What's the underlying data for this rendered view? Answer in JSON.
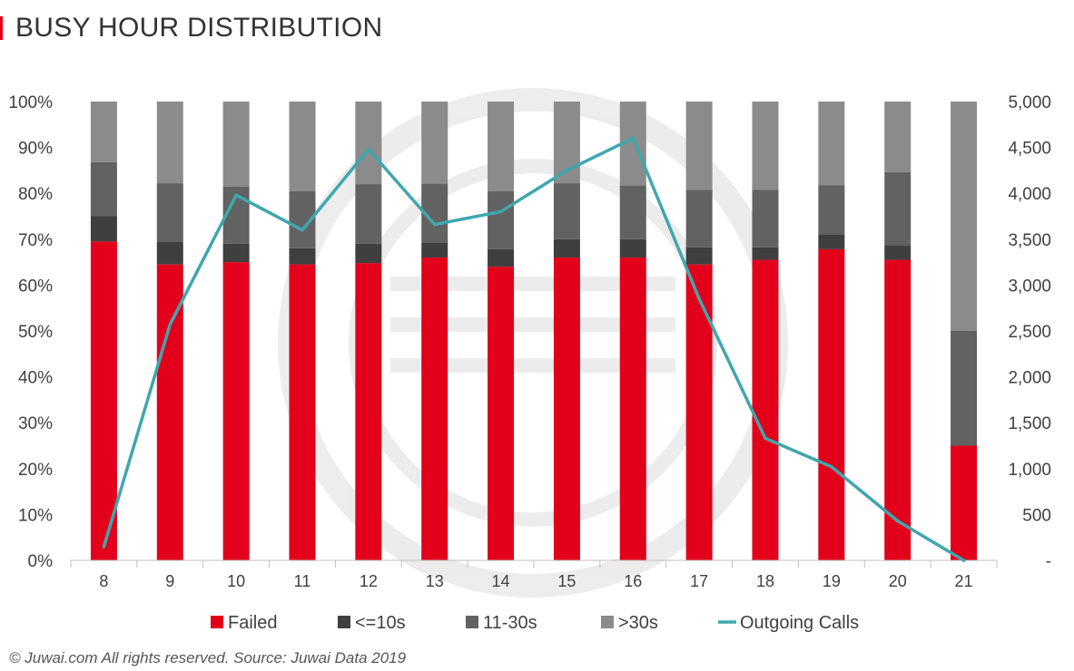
{
  "header": {
    "title": "BUSY HOUR DISTRIBUTION",
    "accent_color": "#e2001a"
  },
  "footer": {
    "text": "© Juwai.com All rights reserved. Source: Juwai Data 2019"
  },
  "chart_data": {
    "type": "bar",
    "subtype": "stacked-100-with-line",
    "categories": [
      "8",
      "9",
      "10",
      "11",
      "12",
      "13",
      "14",
      "15",
      "16",
      "17",
      "18",
      "19",
      "20",
      "21"
    ],
    "series": [
      {
        "name": "Failed",
        "color": "#e2001a",
        "values": [
          69.5,
          64.5,
          65,
          64.5,
          64.8,
          66,
          64,
          66,
          66,
          64.5,
          65.5,
          67.8,
          65.5,
          25
        ]
      },
      {
        "name": "<=10s",
        "color": "#3f3f3f",
        "values": [
          5.5,
          5,
          4,
          3.5,
          4.2,
          3.3,
          3.8,
          4,
          4,
          3.7,
          2.7,
          3.3,
          3.2,
          0
        ]
      },
      {
        "name": "11-30s",
        "color": "#626262",
        "values": [
          11.8,
          12.7,
          12.5,
          12.5,
          13,
          12.8,
          12.7,
          12.2,
          11.7,
          12.6,
          12.6,
          10.7,
          15.9,
          25
        ]
      },
      {
        "name": ">30s",
        "color": "#8b8b8b",
        "values": [
          13.2,
          17.8,
          18.5,
          19.5,
          18,
          17.9,
          19.5,
          17.8,
          18.3,
          19.2,
          19.2,
          18.2,
          15.4,
          50
        ]
      }
    ],
    "line_series": {
      "name": "Outgoing Calls",
      "color": "#3fa7ad",
      "axis": "right",
      "values": [
        150,
        2570,
        3980,
        3600,
        4480,
        3660,
        3800,
        4250,
        4600,
        2850,
        1330,
        1020,
        430,
        0
      ]
    },
    "left_axis": {
      "min": 0,
      "max": 100,
      "ticks": [
        "0%",
        "10%",
        "20%",
        "30%",
        "40%",
        "50%",
        "60%",
        "70%",
        "80%",
        "90%",
        "100%"
      ]
    },
    "right_axis": {
      "min": 0,
      "max": 5000,
      "ticks": [
        "-",
        "500",
        "1,000",
        "1,500",
        "2,000",
        "2,500",
        "3,000",
        "3,500",
        "4,000",
        "4,500",
        "5,000"
      ]
    },
    "legend": {
      "position": "bottom",
      "items": [
        "Failed",
        "<=10s",
        "11-30s",
        ">30s",
        "Outgoing Calls"
      ]
    },
    "grid": false,
    "text_color": "#404040",
    "axis_color": "#bfbfbf"
  }
}
